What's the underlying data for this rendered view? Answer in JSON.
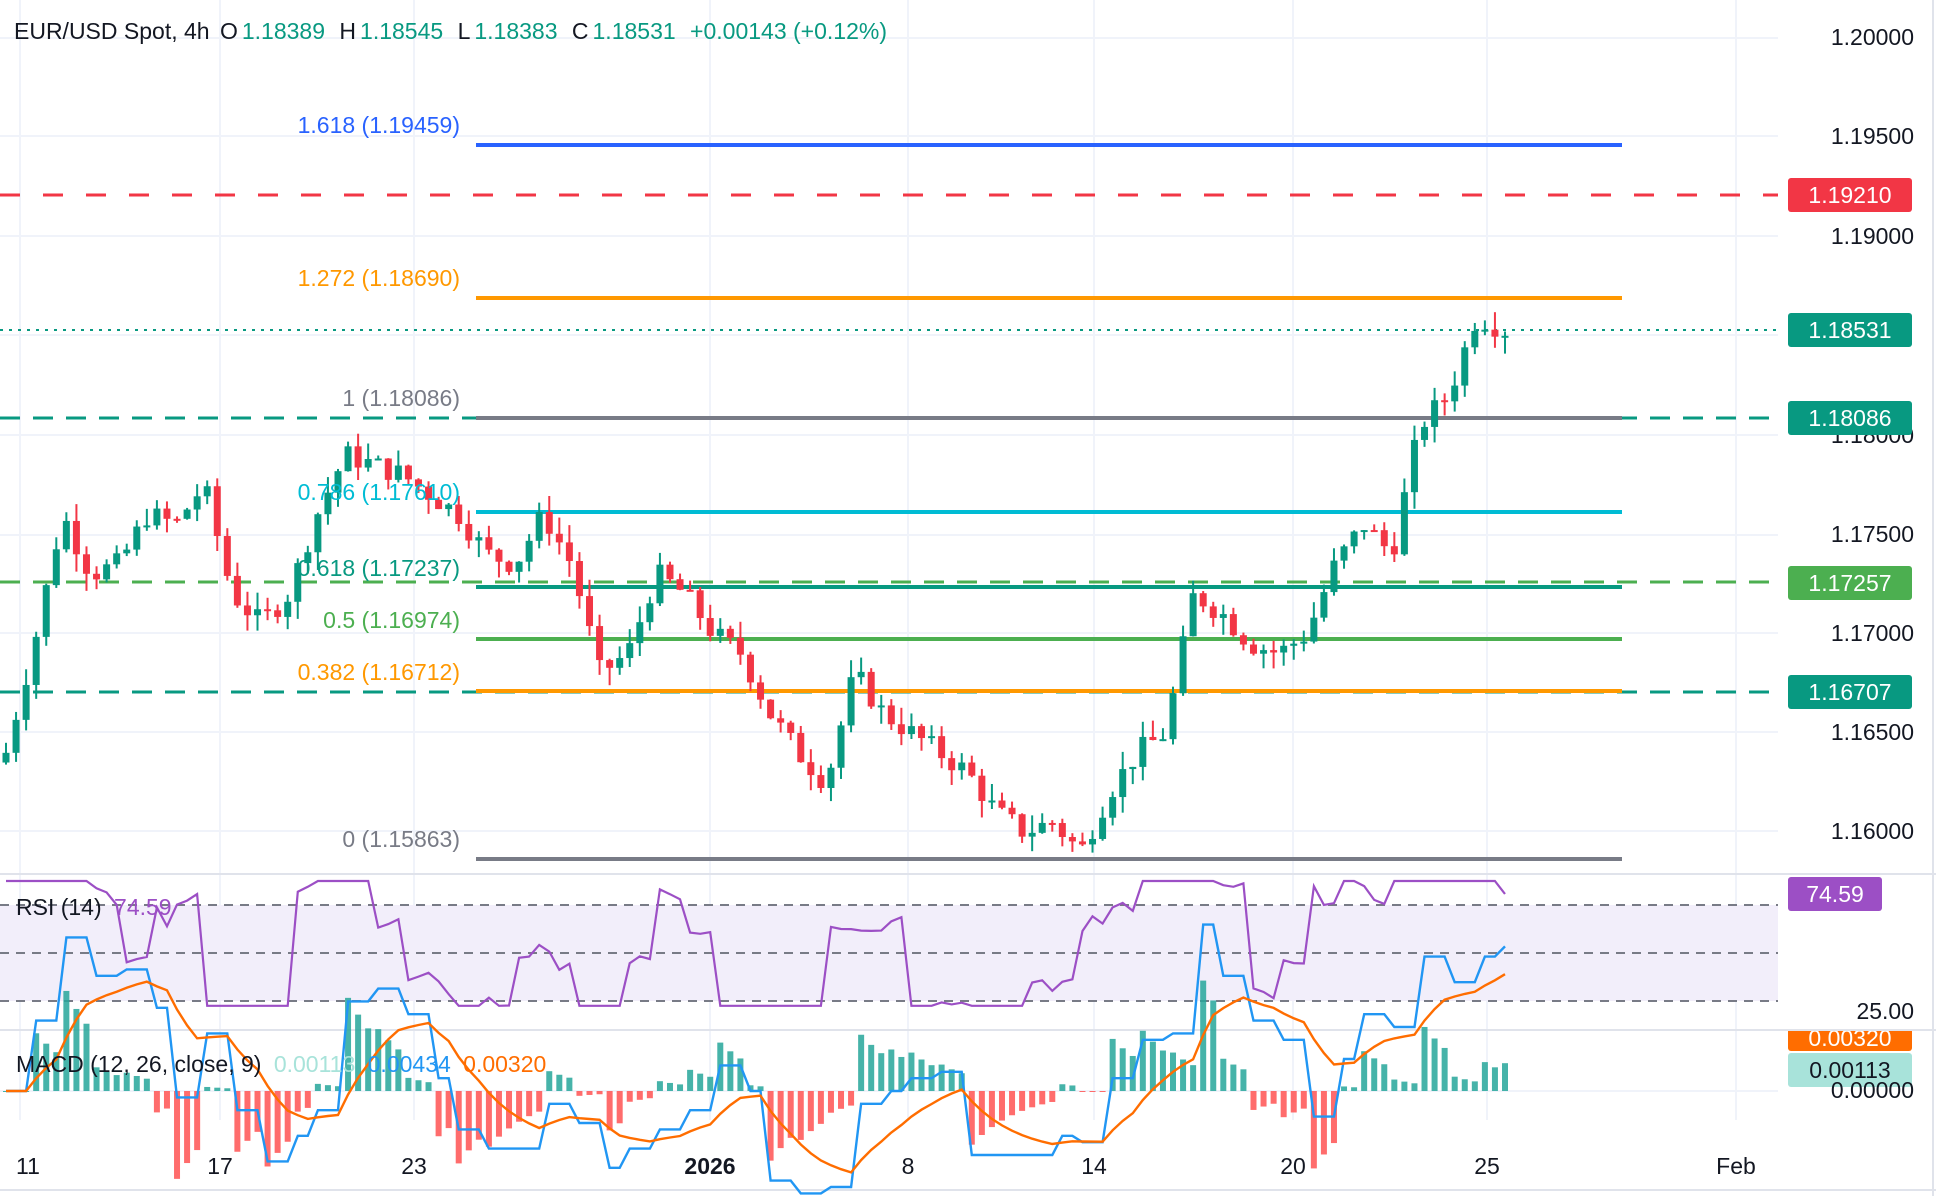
{
  "header": {
    "symbol": "EUR/USD Spot, 4h",
    "o_label": "O",
    "o_value": "1.18389",
    "h_label": "H",
    "h_value": "1.18545",
    "l_label": "L",
    "l_value": "1.18383",
    "c_label": "C",
    "c_value": "1.18531",
    "change": "+0.00143 (+0.12%)"
  },
  "price_axis": [
    "1.20000",
    "1.19500",
    "1.19000",
    "1.18000",
    "1.17500",
    "1.17000",
    "1.16500",
    "1.16000"
  ],
  "badges": {
    "resistance": "1.19210",
    "last_price": "1.18531",
    "fib_1": "1.18086",
    "support_1": "1.17257",
    "support_2": "1.16707",
    "rsi": "74.59",
    "macd_signal": "0.00320",
    "macd_hist": "0.00113"
  },
  "fib_levels": [
    {
      "label": "1.618 (1.19459)",
      "color": "#2962ff"
    },
    {
      "label": "1.272 (1.18690)",
      "color": "#ff9800"
    },
    {
      "label": "1 (1.18086)",
      "color": "#787b86"
    },
    {
      "label": "0.786 (1.17610)",
      "color": "#00bcd4"
    },
    {
      "label": "0.618 (1.17237)",
      "color": "#089981"
    },
    {
      "label": "0.5 (1.16974)",
      "color": "#4caf50"
    },
    {
      "label": "0.382 (1.16712)",
      "color": "#ff9800"
    },
    {
      "label": "0 (1.15863)",
      "color": "#787b86"
    }
  ],
  "rsi": {
    "title": "RSI (14)",
    "value": "74.59",
    "axis_label": "25.00"
  },
  "macd": {
    "title": "MACD (12, 26, close, 9)",
    "hist": "0.00113",
    "macd": "0.00434",
    "signal": "0.00320",
    "axis_zero": "0.00000"
  },
  "time_axis": [
    "11",
    "17",
    "23",
    "2026",
    "8",
    "14",
    "20",
    "25",
    "Feb"
  ],
  "colors": {
    "up": "#089981",
    "down": "#f23645",
    "resistance": "#f23645",
    "support_dashed": "#089981",
    "support_green": "#4caf50",
    "rsi": "#9c27b0",
    "macd_line": "#2196f3",
    "signal_line": "#ff6d00"
  },
  "chart_data": {
    "type": "candlestick",
    "title": "EUR/USD Spot, 4h",
    "ylabel": "Price",
    "ylim": [
      1.157,
      1.201
    ],
    "x_ticks": [
      "11",
      "17",
      "23",
      "2026",
      "8",
      "14",
      "20",
      "25",
      "Feb"
    ],
    "ohlc_last": {
      "open": 1.18389,
      "high": 1.18545,
      "low": 1.18383,
      "close": 1.18531,
      "change": 0.00143,
      "change_pct": 0.12
    },
    "horizontal_levels": [
      {
        "name": "Resistance",
        "value": 1.1921,
        "style": "dashed",
        "color": "#f23645"
      },
      {
        "name": "Fib 1.618",
        "value": 1.19459
      },
      {
        "name": "Fib 1.272",
        "value": 1.1869
      },
      {
        "name": "Fib 1",
        "value": 1.18086
      },
      {
        "name": "Fib 0.786",
        "value": 1.1761
      },
      {
        "name": "Fib 0.618",
        "value": 1.17237
      },
      {
        "name": "Fib 0.5",
        "value": 1.16974
      },
      {
        "name": "Fib 0.382",
        "value": 1.16712
      },
      {
        "name": "Fib 0",
        "value": 1.15863
      },
      {
        "name": "Support dashed",
        "value": 1.18086,
        "style": "dashed"
      },
      {
        "name": "Support dashed",
        "value": 1.17257,
        "style": "dashed"
      },
      {
        "name": "Support dashed",
        "value": 1.16707,
        "style": "dashed"
      }
    ],
    "approx_close_path": [
      1.164,
      1.1695,
      1.176,
      1.173,
      1.1735,
      1.176,
      1.1755,
      1.1775,
      1.172,
      1.1705,
      1.172,
      1.176,
      1.179,
      1.1785,
      1.178,
      1.177,
      1.176,
      1.174,
      1.1735,
      1.176,
      1.1735,
      1.168,
      1.169,
      1.173,
      1.172,
      1.17,
      1.169,
      1.166,
      1.164,
      1.1625,
      1.168,
      1.166,
      1.165,
      1.164,
      1.163,
      1.161,
      1.16,
      1.1605,
      1.159,
      1.162,
      1.164,
      1.165,
      1.172,
      1.171,
      1.1695,
      1.169,
      1.17,
      1.1735,
      1.1755,
      1.174,
      1.1805,
      1.182,
      1.186,
      1.1853
    ],
    "rsi": {
      "period": 14,
      "last": 74.59,
      "levels": [
        70,
        50,
        30
      ],
      "axis_label": 25.0
    },
    "macd": {
      "fast": 12,
      "slow": 26,
      "signal": 9,
      "histogram": 0.00113,
      "macd": 0.00434,
      "signal_value": 0.0032
    }
  }
}
